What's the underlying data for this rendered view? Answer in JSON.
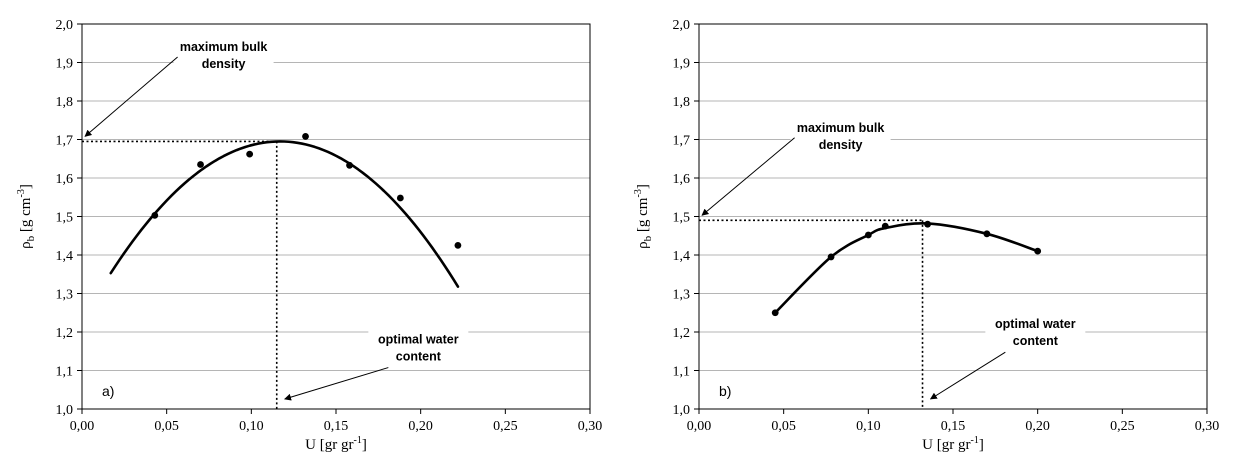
{
  "chart_data": [
    {
      "type": "scatter",
      "panel_label": "a)",
      "xlabel": "U [gr gr",
      "xlabel_sup": "-1",
      "xlabel_close": "]",
      "ylabel_main": "ρ",
      "ylabel_sub": "b",
      "ylabel_unit": " [g cm",
      "ylabel_sup": "-3",
      "ylabel_close": "]",
      "xlim": [
        0.0,
        0.3
      ],
      "ylim": [
        1.0,
        2.0
      ],
      "x_ticks": [
        "0,00",
        "0,05",
        "0,10",
        "0,15",
        "0,20",
        "0,25",
        "0,30"
      ],
      "y_ticks": [
        "1,0",
        "1,1",
        "1,2",
        "1,3",
        "1,4",
        "1,5",
        "1,6",
        "1,7",
        "1,8",
        "1,9",
        "2,0"
      ],
      "grid": "horizontal",
      "points": {
        "x": [
          0.043,
          0.07,
          0.099,
          0.132,
          0.158,
          0.188,
          0.222
        ],
        "y": [
          1.503,
          1.635,
          1.662,
          1.708,
          1.633,
          1.548,
          1.425
        ]
      },
      "fit_curve": {
        "type": "quadratic",
        "x_range": [
          0.017,
          0.222
        ],
        "vertex_x": 0.117,
        "vertex_y": 1.695,
        "y_at_x_start": 1.353
      },
      "max_bulk_density": 1.695,
      "optimal_water_content": 0.115,
      "annotations": [
        {
          "lines": [
            "maximum bulk",
            "density"
          ],
          "target": "y-axis",
          "x": 0.06,
          "y": 1.93
        },
        {
          "lines": [
            "optimal water",
            "content"
          ],
          "target": "x-axis",
          "x": 0.175,
          "y": 1.17
        }
      ]
    },
    {
      "type": "scatter",
      "panel_label": "b)",
      "xlabel": "U [gr gr",
      "xlabel_sup": "-1",
      "xlabel_close": "]",
      "ylabel_main": "ρ",
      "ylabel_sub": "b",
      "ylabel_unit": " [g cm",
      "ylabel_sup": "-3",
      "ylabel_close": "]",
      "xlim": [
        0.0,
        0.3
      ],
      "ylim": [
        1.0,
        2.0
      ],
      "x_ticks": [
        "0,00",
        "0,05",
        "0,10",
        "0,15",
        "0,20",
        "0,25",
        "0,30"
      ],
      "y_ticks": [
        "1,0",
        "1,1",
        "1,2",
        "1,3",
        "1,4",
        "1,5",
        "1,6",
        "1,7",
        "1,8",
        "1,9",
        "2,0"
      ],
      "grid": "horizontal",
      "points": {
        "x": [
          0.045,
          0.078,
          0.1,
          0.11,
          0.135,
          0.17,
          0.2
        ],
        "y": [
          1.25,
          1.395,
          1.452,
          1.475,
          1.48,
          1.455,
          1.41
        ]
      },
      "fit_curve": {
        "type": "spline",
        "x": [
          0.045,
          0.078,
          0.1,
          0.11,
          0.135,
          0.17,
          0.2
        ],
        "y": [
          1.25,
          1.395,
          1.452,
          1.47,
          1.482,
          1.455,
          1.41
        ]
      },
      "max_bulk_density": 1.49,
      "optimal_water_content": 0.132,
      "annotations": [
        {
          "lines": [
            "maximum bulk",
            "density"
          ],
          "target": "y-axis",
          "x": 0.06,
          "y": 1.72
        },
        {
          "lines": [
            "optimal water",
            "content"
          ],
          "target": "x-axis",
          "x": 0.175,
          "y": 1.21
        }
      ]
    }
  ]
}
